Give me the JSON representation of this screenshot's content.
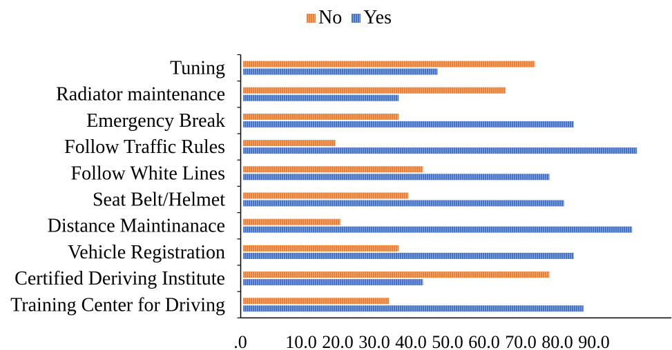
{
  "chart_data": {
    "type": "bar",
    "orientation": "horizontal",
    "categories": [
      "Tuning",
      "Radiator maintenance",
      "Emergency Break",
      "Follow Traffic Rules",
      "Follow White Lines",
      "Seat Belt/Helmet",
      "Distance Maintinanace",
      "Vehicle Registration",
      "Certified Deriving Institute",
      "Training Center for Driving"
    ],
    "series": [
      {
        "name": "No",
        "color": "#ED7D31",
        "values": [
          60,
          54,
          32,
          19,
          37,
          34,
          20,
          32,
          63,
          30
        ]
      },
      {
        "name": "Yes",
        "color": "#4472C4",
        "values": [
          40,
          32,
          68,
          81,
          63,
          66,
          80,
          68,
          37,
          70
        ]
      }
    ],
    "x_tick_labels": [
      ".0",
      "10.0",
      "20.0",
      "30.0",
      "40.0",
      "50.0",
      "60.0",
      "70.0",
      "80.0",
      "90.0"
    ],
    "legend_position": "top",
    "grid": false
  }
}
